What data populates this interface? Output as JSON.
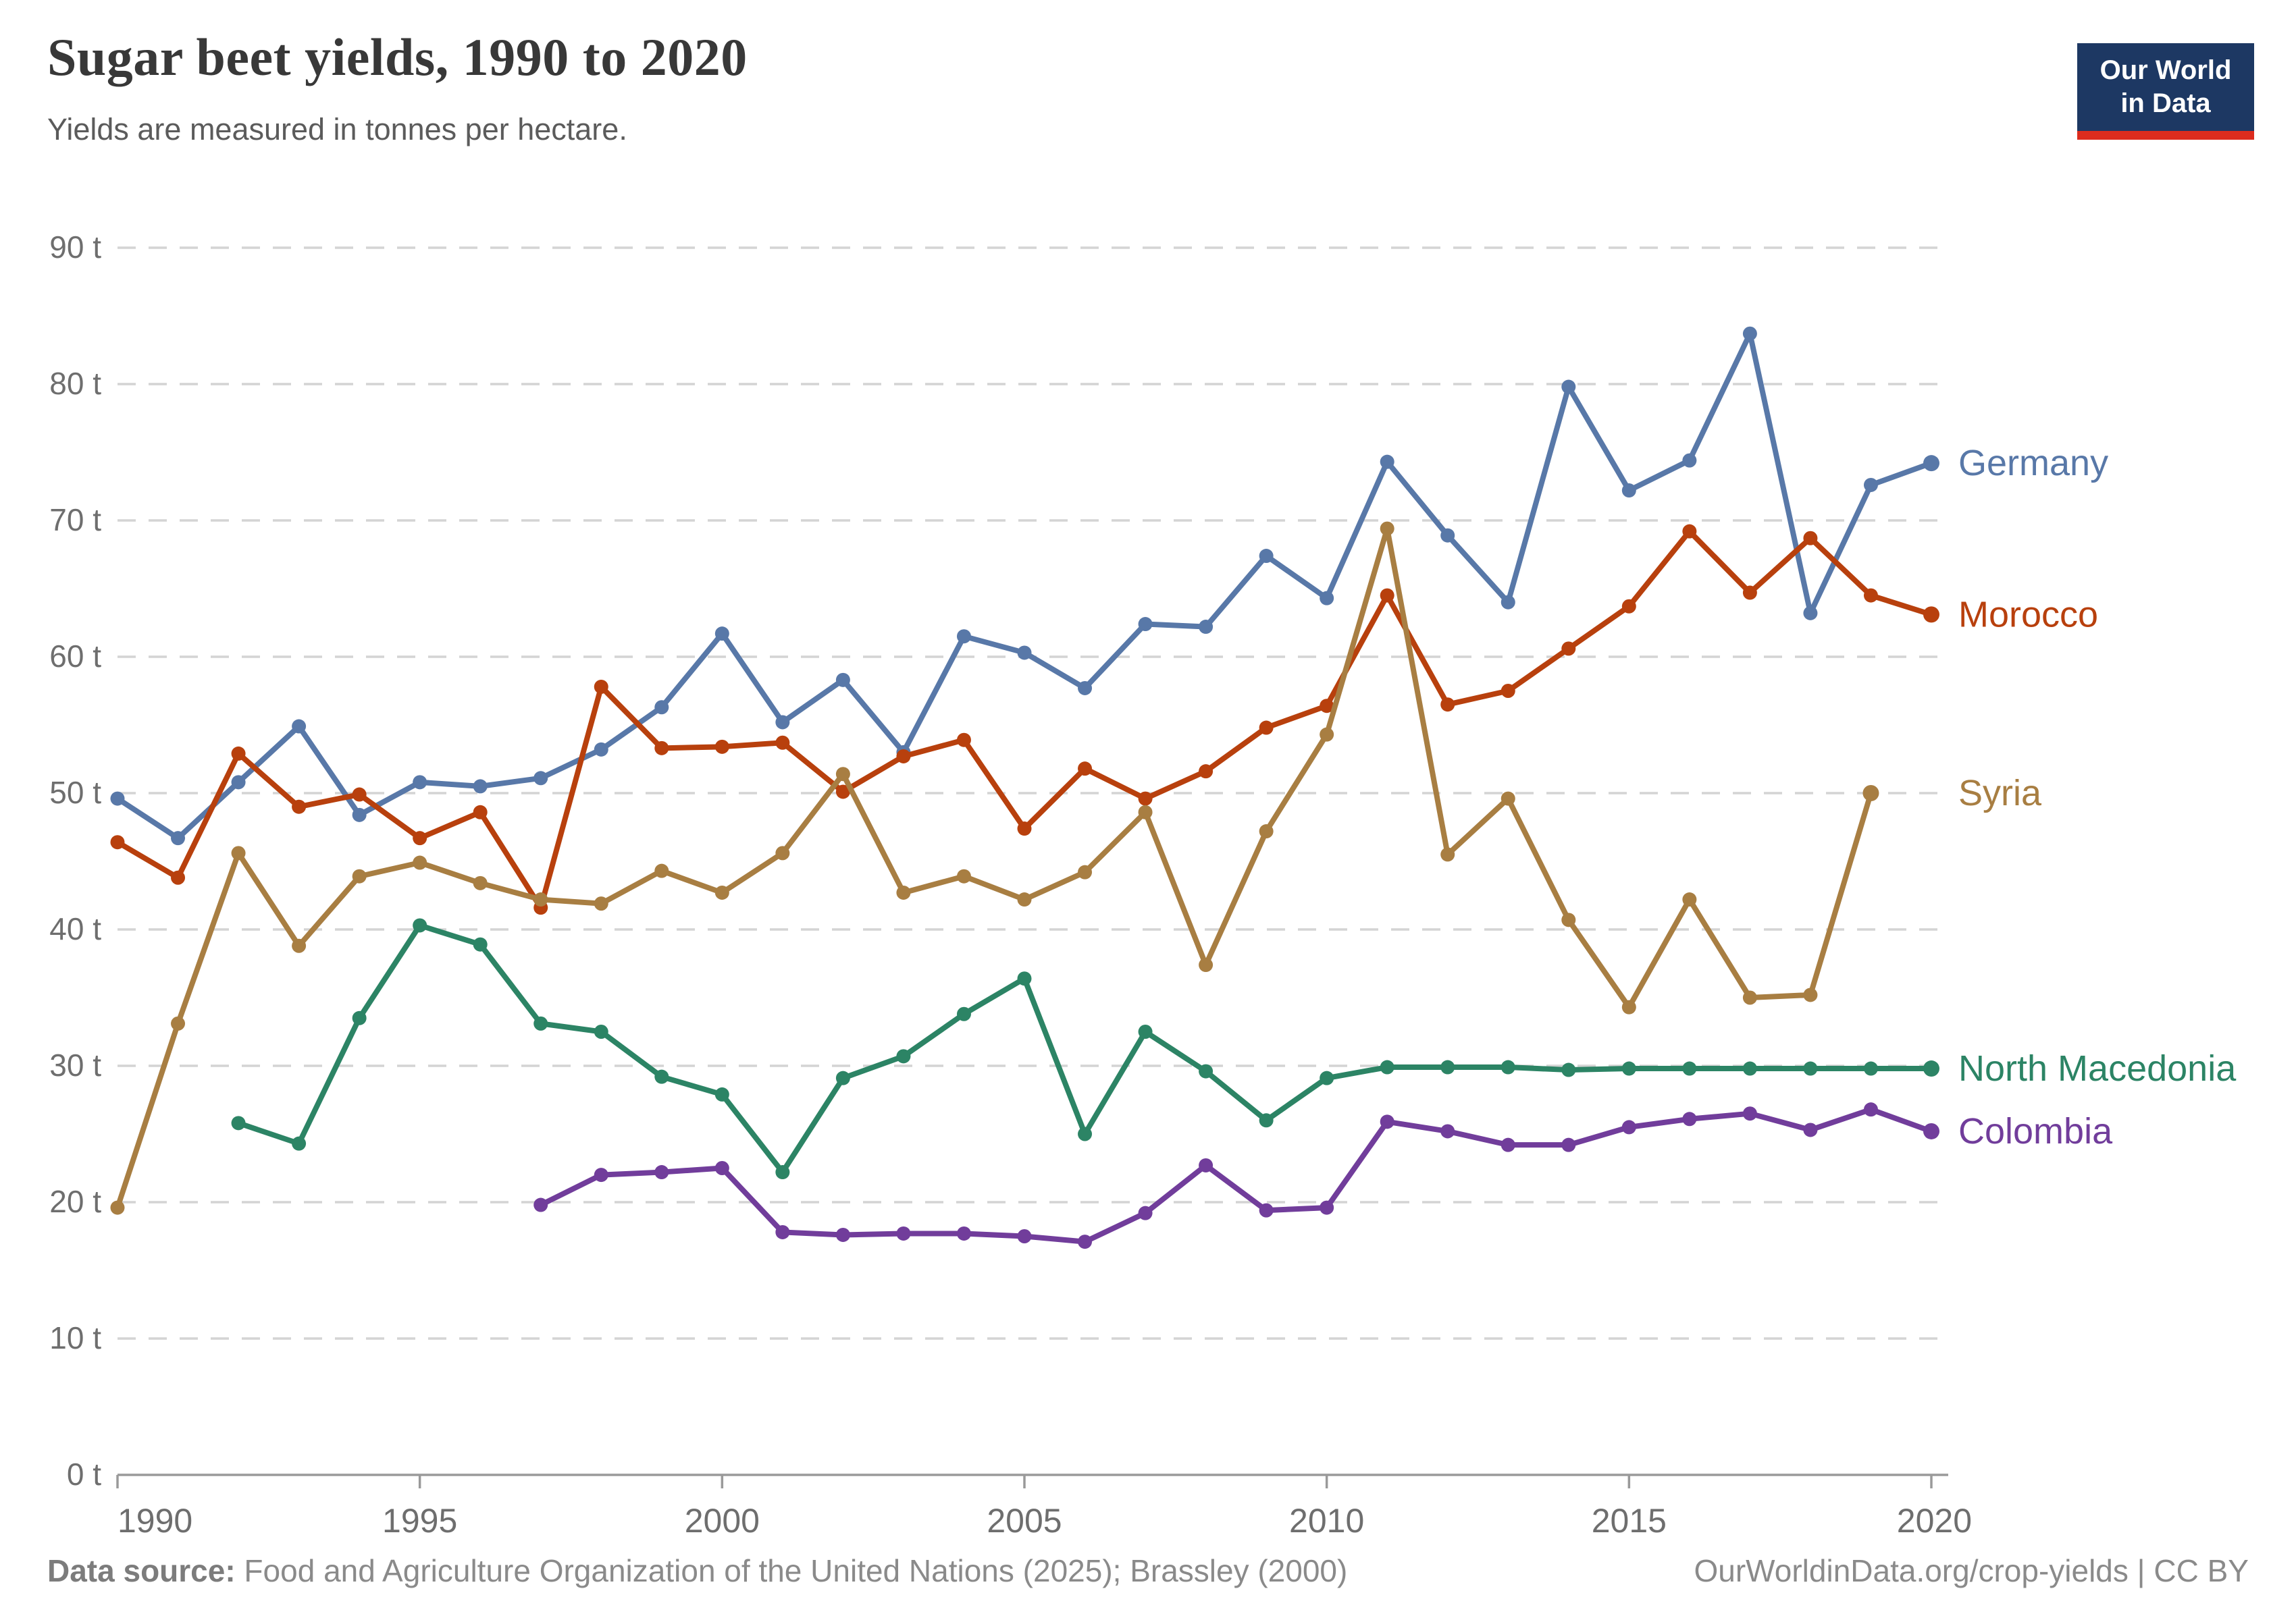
{
  "header": {
    "title": "Sugar beet yields, 1990 to 2020",
    "subtitle": "Yields are measured in tonnes per hectare."
  },
  "logo": {
    "line1": "Our World",
    "line2": "in Data"
  },
  "footer": {
    "source_label": "Data source:",
    "source_text": " Food and Agriculture Organization of the United Nations (2025); Brassley (2000)",
    "link_text": "OurWorldinData.org/crop-yields | CC BY"
  },
  "chart_data": {
    "type": "line",
    "title": "Sugar beet yields, 1990 to 2020",
    "ylabel": "tonnes per hectare",
    "xlim": [
      1990,
      2020
    ],
    "ylim": [
      0,
      90
    ],
    "grid": true,
    "legend_position": "right-of-line-ends",
    "y_ticks": [
      {
        "v": 0,
        "label": "0 t"
      },
      {
        "v": 10,
        "label": "10 t"
      },
      {
        "v": 20,
        "label": "20 t"
      },
      {
        "v": 30,
        "label": "30 t"
      },
      {
        "v": 40,
        "label": "40 t"
      },
      {
        "v": 50,
        "label": "50 t"
      },
      {
        "v": 60,
        "label": "60 t"
      },
      {
        "v": 70,
        "label": "70 t"
      },
      {
        "v": 80,
        "label": "80 t"
      },
      {
        "v": 90,
        "label": "90 t"
      }
    ],
    "x_ticks": [
      1990,
      1995,
      2000,
      2005,
      2010,
      2015,
      2020
    ],
    "series": [
      {
        "name": "Germany",
        "color": "#5878a8",
        "start_year": 1990,
        "values": [
          49.6,
          46.7,
          50.8,
          54.9,
          48.4,
          50.8,
          50.5,
          51.1,
          53.2,
          56.3,
          61.7,
          55.2,
          58.3,
          53.0,
          61.5,
          60.3,
          57.7,
          62.4,
          62.2,
          67.4,
          64.3,
          74.3,
          68.9,
          64.0,
          79.8,
          72.2,
          74.4,
          83.7,
          63.2,
          72.6,
          74.2
        ]
      },
      {
        "name": "Morocco",
        "color": "#b8400d",
        "start_year": 1990,
        "values": [
          46.4,
          43.8,
          52.9,
          49.0,
          49.9,
          46.7,
          48.6,
          41.6,
          57.8,
          53.3,
          53.4,
          53.7,
          50.1,
          52.7,
          53.9,
          47.4,
          51.8,
          49.6,
          51.6,
          54.8,
          56.4,
          64.5,
          56.5,
          57.5,
          60.6,
          63.7,
          69.2,
          64.7,
          68.7,
          64.5,
          63.1
        ]
      },
      {
        "name": "Syria",
        "color": "#a87e42",
        "start_year": 1990,
        "values": [
          19.6,
          33.1,
          45.6,
          38.8,
          43.9,
          44.9,
          43.4,
          42.2,
          41.9,
          44.3,
          42.7,
          45.6,
          51.4,
          42.7,
          43.9,
          42.2,
          44.2,
          48.6,
          37.4,
          47.2,
          54.3,
          69.4,
          45.5,
          49.6,
          40.7,
          34.3,
          42.2,
          35.0,
          35.2,
          50.0
        ]
      },
      {
        "name": "North Macedonia",
        "color": "#2c8465",
        "start_year": 1992,
        "values": [
          25.8,
          24.3,
          33.5,
          40.3,
          38.9,
          33.1,
          32.5,
          29.2,
          27.9,
          22.2,
          29.1,
          30.7,
          33.8,
          36.4,
          25.0,
          32.5,
          29.6,
          26.0,
          29.1,
          29.9,
          29.9,
          29.9,
          29.7,
          29.8,
          29.8,
          29.8,
          29.8,
          29.8,
          29.8
        ]
      },
      {
        "name": "Colombia",
        "color": "#713d9b",
        "start_year": 1997,
        "values": [
          19.8,
          22.0,
          22.2,
          22.5,
          17.8,
          17.6,
          17.7,
          17.7,
          17.5,
          17.1,
          19.2,
          22.7,
          19.4,
          19.6,
          25.9,
          25.2,
          24.2,
          24.2,
          25.5,
          26.1,
          26.5,
          25.3,
          26.8,
          25.2
        ]
      }
    ]
  }
}
